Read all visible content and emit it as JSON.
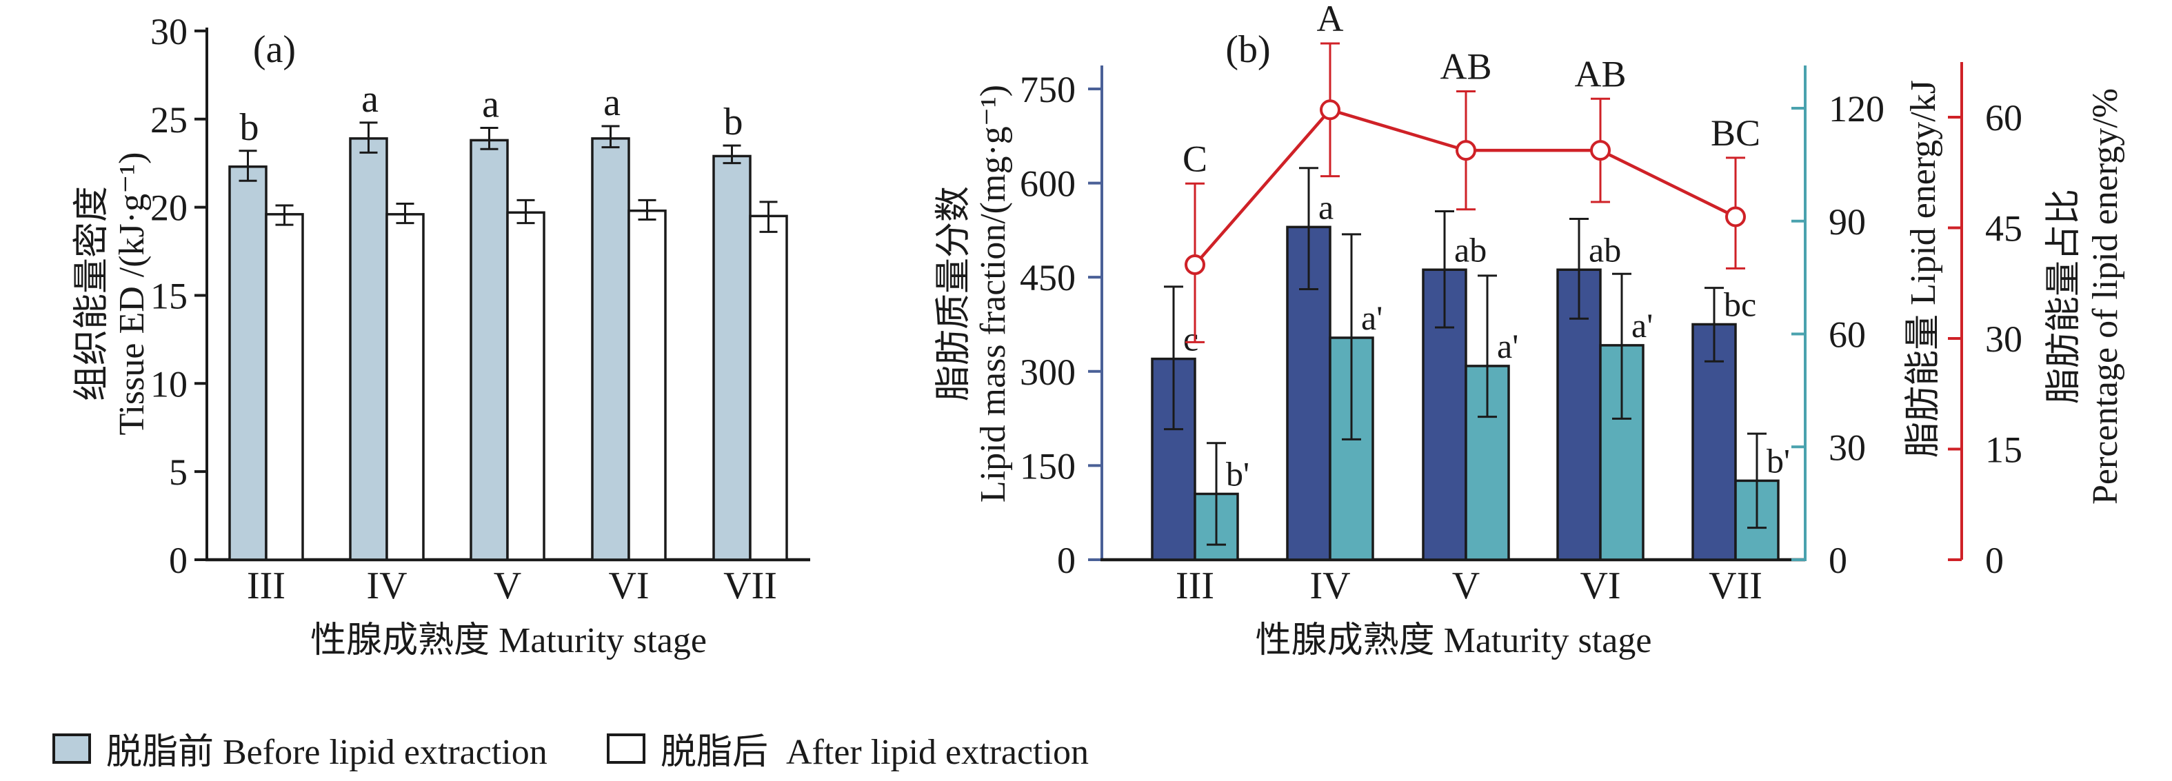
{
  "figure": {
    "panel_a_tag": "(a)",
    "panel_b_tag": "(b)"
  },
  "legend": {
    "items": [
      {
        "id": "before",
        "label": "脱脂前 Before lipid extraction",
        "fill": "#b9cedb",
        "border": "#1a1a1a"
      },
      {
        "id": "after",
        "label": "脱脂后  After lipid extraction",
        "fill": "#ffffff",
        "border": "#1a1a1a"
      }
    ]
  },
  "chart_data": [
    {
      "id": "panel-a",
      "type": "bar",
      "panel_label": "(a)",
      "categories": [
        "III",
        "IV",
        "V",
        "VI",
        "VII"
      ],
      "xlabel": "性腺成熟度 Maturity stage",
      "ylabel_lines": [
        "组织能量密度",
        "Tissue ED /(kJ·g⁻¹)"
      ],
      "ylim": [
        0,
        30
      ],
      "yticks": [
        0,
        5,
        10,
        15,
        20,
        25,
        30
      ],
      "grid": false,
      "series": [
        {
          "key": "before",
          "name": "脱脂前 Before lipid extraction",
          "color": "#b9cedb",
          "values": [
            22.3,
            23.9,
            23.8,
            23.9,
            22.9
          ],
          "err_low": [
            21.5,
            23.1,
            23.3,
            23.4,
            22.5
          ],
          "err_high": [
            23.2,
            24.8,
            24.5,
            24.6,
            23.5
          ],
          "letters": [
            "b",
            "a",
            "a",
            "a",
            "b"
          ]
        },
        {
          "key": "after",
          "name": "脱脂后 After lipid extraction",
          "color": "#ffffff",
          "values": [
            19.6,
            19.6,
            19.7,
            19.8,
            19.5
          ],
          "err_low": [
            19.0,
            19.1,
            19.1,
            19.3,
            18.6
          ],
          "err_high": [
            20.1,
            20.2,
            20.4,
            20.4,
            20.3
          ],
          "letters": []
        }
      ]
    },
    {
      "id": "panel-b",
      "type": "bar+line",
      "panel_label": "(b)",
      "categories": [
        "III",
        "IV",
        "V",
        "VI",
        "VII"
      ],
      "xlabel": "性腺成熟度 Maturity stage",
      "left_axis": {
        "label_lines": [
          "脂肪质量分数",
          "Lipid mass fraction/(mg·g⁻¹)"
        ],
        "ticks": [
          0,
          150,
          300,
          450,
          600,
          750
        ],
        "lim": [
          0,
          787
        ],
        "color": "#4a6097"
      },
      "energy_axis": {
        "label": "脂肪能量  Lipid energy/kJ",
        "ticks": [
          0,
          30,
          60,
          90,
          120
        ],
        "lim": [
          0,
          131
        ],
        "color": "#4aa2ae"
      },
      "percent_axis": {
        "label_lines": [
          "脂肪能量占比",
          "Percentage of lipid energy/%"
        ],
        "ticks": [
          0,
          15,
          30,
          45,
          60
        ],
        "lim": [
          0,
          67.5
        ],
        "color": "#cf2127"
      },
      "bar_series": [
        {
          "key": "lipid-mass-fraction",
          "name": "脂肪质量分数 Lipid mass fraction",
          "axis": "left",
          "color": "#3d5191",
          "values": [
            320,
            530,
            462,
            462,
            375
          ],
          "err_low": [
            208,
            431,
            370,
            384,
            316
          ],
          "err_high": [
            435,
            624,
            555,
            543,
            433
          ],
          "letters": [
            "c",
            "a",
            "ab",
            "ab",
            "bc"
          ]
        },
        {
          "key": "lipid-energy",
          "name": "脂肪能量 Lipid energy",
          "axis": "energy",
          "color": "#5cadb9",
          "values": [
            17.5,
            59,
            51.5,
            57,
            21
          ],
          "err_low": [
            4,
            32,
            38,
            37.5,
            8.5
          ],
          "err_high": [
            31,
            86.5,
            75.5,
            76,
            33.5
          ],
          "letters": [
            "b'",
            "a'",
            "a'",
            "a'",
            "b'"
          ]
        }
      ],
      "line_series": {
        "key": "percentage-of-lipid-energy",
        "name": "脂肪能量占比 Percentage of lipid energy",
        "axis": "percent",
        "color": "#cf2127",
        "marker": "open-circle",
        "values": [
          40,
          61,
          55.5,
          55.5,
          46.5
        ],
        "err_low": [
          29.5,
          52,
          47.5,
          48.5,
          39.5
        ],
        "err_high": [
          51,
          70,
          63.5,
          62.5,
          54.5
        ],
        "letters": [
          "C",
          "A",
          "AB",
          "AB",
          "BC"
        ]
      }
    }
  ]
}
